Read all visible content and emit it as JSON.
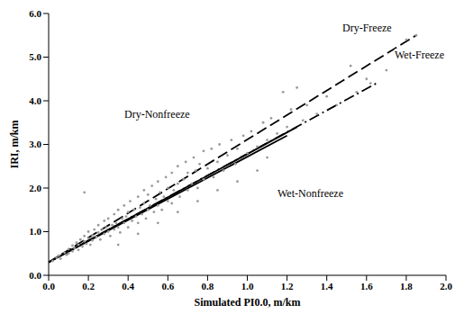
{
  "chart_data": {
    "type": "scatter",
    "x_label": "Simulated PI0.0, m/km",
    "y_label": "IRI, m/km",
    "color": "#9a9a9a",
    "marker": "circle",
    "grid": false,
    "xlim": [
      0,
      2.0
    ],
    "ylim": [
      0,
      6.0
    ],
    "xticks": [
      {
        "value": 0,
        "label": "0.0"
      },
      {
        "value": 0.2,
        "label": "0.2"
      },
      {
        "value": 0.4,
        "label": "0.4"
      },
      {
        "value": 0.6,
        "label": "0.6"
      },
      {
        "value": 0.8,
        "label": "0.8"
      },
      {
        "value": 1.0,
        "label": "1.0"
      },
      {
        "value": 1.2,
        "label": "1.2"
      },
      {
        "value": 1.4,
        "label": "1.4"
      },
      {
        "value": 1.6,
        "label": "1.6"
      },
      {
        "value": 1.8,
        "label": "1.8"
      },
      {
        "value": 2.0,
        "label": "2.0"
      }
    ],
    "yticks": [
      {
        "value": 0,
        "label": "0.0"
      },
      {
        "value": 1.0,
        "label": "1.0"
      },
      {
        "value": 2.0,
        "label": "2.0"
      },
      {
        "value": 3.0,
        "label": "3.0"
      },
      {
        "value": 4.0,
        "label": "4.0"
      },
      {
        "value": 5.0,
        "label": "5.0"
      },
      {
        "value": 6.0,
        "label": "6.0"
      }
    ],
    "x": [
      0.02,
      0.04,
      0.05,
      0.06,
      0.08,
      0.09,
      0.1,
      0.1,
      0.12,
      0.12,
      0.13,
      0.14,
      0.15,
      0.15,
      0.16,
      0.17,
      0.18,
      0.18,
      0.19,
      0.2,
      0.2,
      0.21,
      0.22,
      0.22,
      0.23,
      0.24,
      0.25,
      0.25,
      0.26,
      0.27,
      0.28,
      0.28,
      0.29,
      0.3,
      0.3,
      0.31,
      0.32,
      0.33,
      0.33,
      0.34,
      0.35,
      0.35,
      0.36,
      0.37,
      0.38,
      0.38,
      0.39,
      0.4,
      0.4,
      0.41,
      0.42,
      0.43,
      0.44,
      0.45,
      0.45,
      0.46,
      0.47,
      0.48,
      0.48,
      0.49,
      0.5,
      0.5,
      0.51,
      0.52,
      0.53,
      0.54,
      0.55,
      0.55,
      0.56,
      0.57,
      0.58,
      0.59,
      0.6,
      0.6,
      0.62,
      0.62,
      0.63,
      0.65,
      0.65,
      0.66,
      0.68,
      0.69,
      0.7,
      0.7,
      0.72,
      0.73,
      0.74,
      0.75,
      0.76,
      0.78,
      0.78,
      0.8,
      0.82,
      0.83,
      0.85,
      0.86,
      0.88,
      0.9,
      0.92,
      0.94,
      0.95,
      0.98,
      1.0,
      1.02,
      1.05,
      1.08,
      1.1,
      1.12,
      1.15,
      1.18,
      1.2,
      1.22,
      1.25,
      1.28,
      1.3,
      1.35,
      1.4,
      1.45,
      1.52,
      1.55,
      1.6,
      1.62,
      1.7,
      1.8,
      1.85,
      0.18,
      0.35,
      0.45,
      0.55,
      0.65,
      0.75,
      0.85,
      0.95,
      1.05,
      1.1
    ],
    "values": [
      0.33,
      0.4,
      0.45,
      0.38,
      0.52,
      0.47,
      0.6,
      0.5,
      0.55,
      0.68,
      0.62,
      0.75,
      0.58,
      0.7,
      0.82,
      0.66,
      0.78,
      0.9,
      0.72,
      0.85,
      1.0,
      0.7,
      0.92,
      0.8,
      1.05,
      0.88,
      0.98,
      1.15,
      0.82,
      1.05,
      0.95,
      1.25,
      1.1,
      1.0,
      1.3,
      0.9,
      1.15,
      1.05,
      1.4,
      1.2,
      1.1,
      1.5,
      0.98,
      1.3,
      1.2,
      1.6,
      1.35,
      1.1,
      1.45,
      1.7,
      1.25,
      1.5,
      1.35,
      1.8,
      1.2,
      1.55,
      1.4,
      1.95,
      1.65,
      1.3,
      1.5,
      1.85,
      1.6,
      2.05,
      1.45,
      1.75,
      1.6,
      2.15,
      1.9,
      1.5,
      1.8,
      2.25,
      1.7,
      2.0,
      2.35,
      1.65,
      1.95,
      2.1,
      2.5,
      1.8,
      2.2,
      2.6,
      1.95,
      2.35,
      2.1,
      2.7,
      2.4,
      2.0,
      2.55,
      2.85,
      2.2,
      2.45,
      2.9,
      2.25,
      2.6,
      3.0,
      2.4,
      2.75,
      3.1,
      2.55,
      2.9,
      3.2,
      2.8,
      3.3,
      2.95,
      3.5,
      3.1,
      3.6,
      3.25,
      4.2,
      3.4,
      3.8,
      4.3,
      3.55,
      3.9,
      3.7,
      4.1,
      3.9,
      4.8,
      4.2,
      4.5,
      4.4,
      4.7,
      5.4,
      5.5,
      1.9,
      0.7,
      0.95,
      1.2,
      1.45,
      1.7,
      1.95,
      2.15,
      2.4,
      2.7
    ],
    "series": [
      {
        "name": "Dry-Freeze",
        "type": "line",
        "line_style": "dashed",
        "color": "#000000",
        "x": [
          0,
          1.85
        ],
        "values": [
          0.3,
          5.5
        ]
      },
      {
        "name": "Wet-Freeze",
        "type": "line",
        "line_style": "dashdot",
        "color": "#000000",
        "x": [
          0,
          1.65
        ],
        "values": [
          0.3,
          4.4
        ]
      },
      {
        "name": "Dry-Nonfreeze",
        "type": "line",
        "line_style": "solid",
        "color": "#000000",
        "x": [
          0,
          1.25
        ],
        "values": [
          0.3,
          3.4
        ]
      },
      {
        "name": "Wet-Nonfreeze",
        "type": "line",
        "line_style": "solid",
        "color": "#000000",
        "x": [
          0,
          1.2
        ],
        "values": [
          0.3,
          3.2
        ]
      }
    ]
  }
}
